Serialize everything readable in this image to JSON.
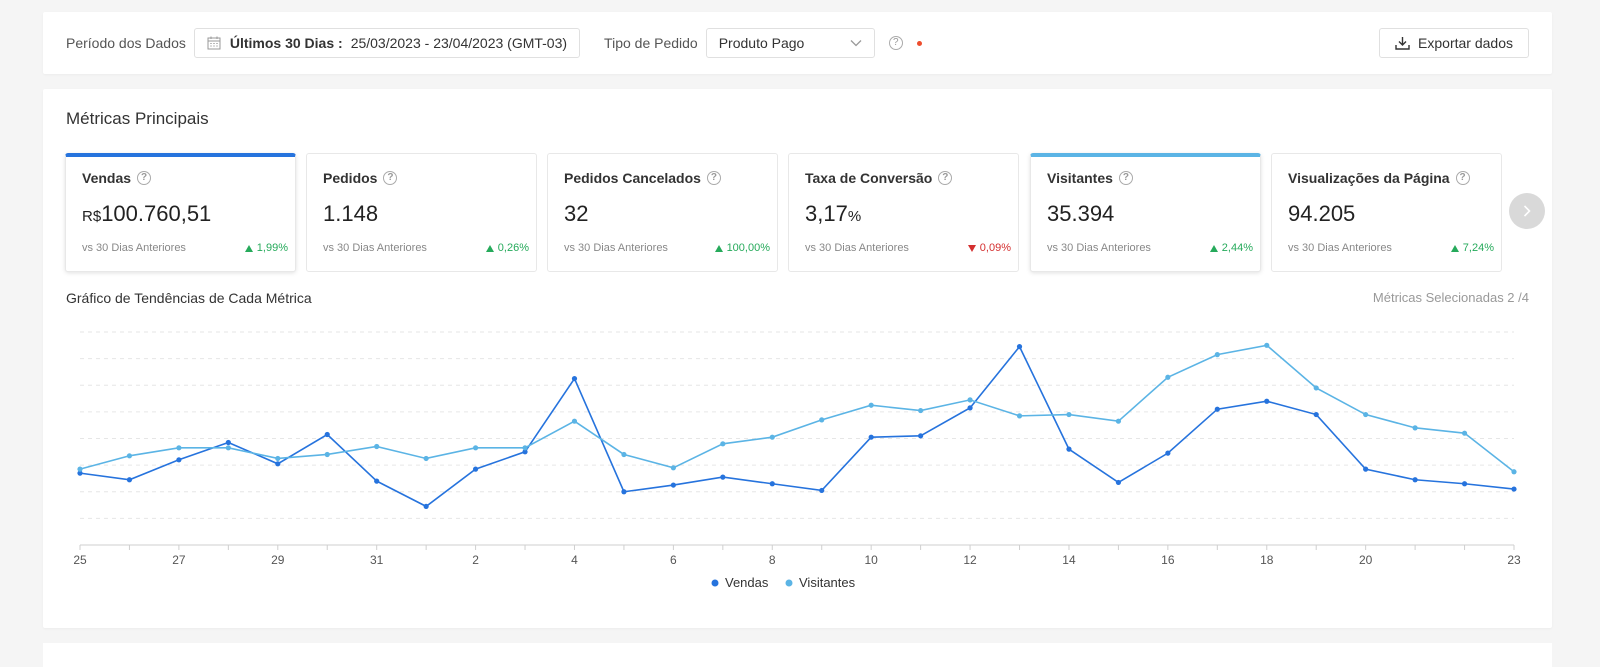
{
  "filters": {
    "period_label": "Período dos Dados",
    "period_bold": "Últimos 30 Dias :",
    "period_range": "25/03/2023 - 23/04/2023 (GMT-03)",
    "order_type_label": "Tipo de Pedido",
    "order_type_value": "Produto Pago",
    "export_label": "Exportar dados"
  },
  "metrics": {
    "title": "Métricas Principais",
    "cards": [
      {
        "title": "Vendas",
        "currency": "R$",
        "value": "100.760,51",
        "unit": "",
        "compare": "vs 30 Dias Anteriores",
        "delta": "1,99%",
        "direction": "up",
        "selected": "dark"
      },
      {
        "title": "Pedidos",
        "currency": "",
        "value": "1.148",
        "unit": "",
        "compare": "vs 30 Dias Anteriores",
        "delta": "0,26%",
        "direction": "up",
        "selected": ""
      },
      {
        "title": "Pedidos Cancelados",
        "currency": "",
        "value": "32",
        "unit": "",
        "compare": "vs 30 Dias Anteriores",
        "delta": "100,00%",
        "direction": "up",
        "selected": ""
      },
      {
        "title": "Taxa de Conversão",
        "currency": "",
        "value": "3,17",
        "unit": "%",
        "compare": "vs 30 Dias Anteriores",
        "delta": "0,09%",
        "direction": "down",
        "selected": ""
      },
      {
        "title": "Visitantes",
        "currency": "",
        "value": "35.394",
        "unit": "",
        "compare": "vs 30 Dias Anteriores",
        "delta": "2,44%",
        "direction": "up",
        "selected": "light"
      },
      {
        "title": "Visualizações da Página",
        "currency": "",
        "value": "94.205",
        "unit": "",
        "compare": "vs 30 Dias Anteriores",
        "delta": "7,24%",
        "direction": "up",
        "selected": ""
      }
    ]
  },
  "trend": {
    "title": "Gráfico de Tendências de Cada Métrica",
    "selected_metrics": "Métricas Selecionadas 2 /4"
  },
  "colors": {
    "vendas": "#2673dd",
    "visitantes": "#5bb4e5",
    "up": "#26aa5b",
    "down": "#d42f2f"
  },
  "chart_data": {
    "type": "line",
    "x": [
      "25",
      "26",
      "27",
      "28",
      "29",
      "30",
      "31",
      "1",
      "2",
      "3",
      "4",
      "5",
      "6",
      "7",
      "8",
      "9",
      "10",
      "11",
      "12",
      "13",
      "14",
      "15",
      "16",
      "17",
      "18",
      "19",
      "20",
      "21",
      "22",
      "23"
    ],
    "x_tick_labels": [
      "25",
      "27",
      "29",
      "31",
      "2",
      "4",
      "6",
      "8",
      "10",
      "12",
      "14",
      "16",
      "18",
      "20",
      "23"
    ],
    "series": [
      {
        "name": "Vendas",
        "color": "#2673dd",
        "values": [
          2.7,
          2.45,
          3.2,
          3.85,
          3.05,
          4.15,
          2.4,
          1.45,
          2.85,
          3.5,
          6.25,
          2.0,
          2.25,
          2.55,
          2.3,
          2.05,
          4.05,
          4.1,
          5.15,
          7.45,
          3.6,
          2.35,
          3.45,
          5.1,
          5.4,
          4.9,
          2.85,
          2.45,
          2.3,
          2.1
        ]
      },
      {
        "name": "Visitantes",
        "color": "#5bb4e5",
        "values": [
          2.85,
          3.35,
          3.65,
          3.65,
          3.25,
          3.4,
          3.7,
          3.25,
          3.65,
          3.65,
          4.65,
          3.4,
          2.9,
          3.8,
          4.05,
          4.7,
          5.25,
          5.05,
          5.45,
          4.85,
          4.9,
          4.65,
          6.3,
          7.15,
          7.5,
          5.9,
          4.9,
          4.4,
          4.2,
          2.75
        ]
      }
    ],
    "ylim": [
      0,
      8
    ],
    "grid": true,
    "legend": "bottom-center"
  }
}
